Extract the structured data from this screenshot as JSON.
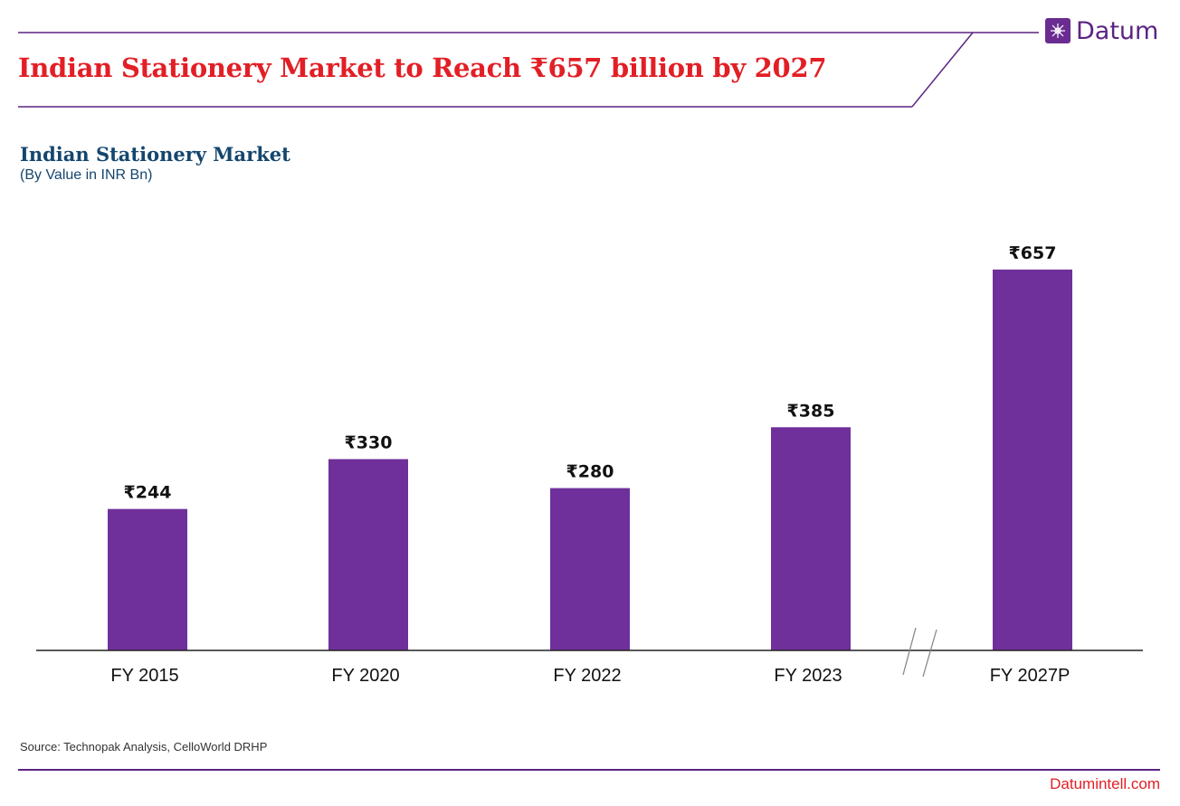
{
  "brand": {
    "name": "Datum",
    "icon": "datum-logo-icon"
  },
  "headline": "Indian Stationery Market to Reach ₹657 billion by 2027",
  "colors": {
    "bar": "#70309b",
    "headline": "#e21f26",
    "title": "#14466e",
    "brand": "#5b2483",
    "footer_link": "#e21f26"
  },
  "chart_data": {
    "type": "bar",
    "title": "Indian Stationery Market",
    "subtitle": "(By Value in INR Bn)",
    "categories": [
      "FY 2015",
      "FY 2020",
      "FY 2022",
      "FY 2023",
      "FY 2027P"
    ],
    "values": [
      244,
      330,
      280,
      385,
      657
    ],
    "value_labels": [
      "₹244",
      "₹330",
      "₹280",
      "₹385",
      "₹657"
    ],
    "xlabel": "",
    "ylabel": "",
    "ylim": [
      0,
      657
    ],
    "grid": false,
    "axis_break_between": [
      "FY 2023",
      "FY 2027P"
    ]
  },
  "source": "Source: Technopak Analysis, CelloWorld DRHP",
  "footer": {
    "site": "Datumintell.com"
  }
}
